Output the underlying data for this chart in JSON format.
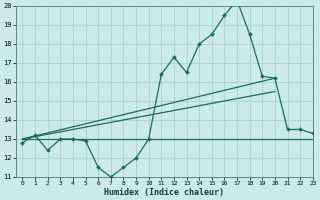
{
  "x": [
    0,
    1,
    2,
    3,
    4,
    5,
    6,
    7,
    8,
    9,
    10,
    11,
    12,
    13,
    14,
    15,
    16,
    17,
    18,
    19,
    20,
    21,
    22,
    23
  ],
  "y_main": [
    12.8,
    13.2,
    12.4,
    13.0,
    13.0,
    12.9,
    11.5,
    11.0,
    11.5,
    12.0,
    13.0,
    16.4,
    17.3,
    16.5,
    18.0,
    18.5,
    19.5,
    20.3,
    18.5,
    16.3,
    16.2,
    13.5,
    13.5,
    13.3
  ],
  "line1_x": [
    0,
    20
  ],
  "line1_y": [
    13.0,
    16.2
  ],
  "line2_x": [
    0,
    20
  ],
  "line2_y": [
    13.0,
    15.5
  ],
  "hline_x": [
    0,
    23
  ],
  "hline_y": [
    13.0,
    13.0
  ],
  "main_color": "#1a6b5a",
  "line_color": "#1a6b5a",
  "bg_color": "#cceaea",
  "grid_color": "#aacece",
  "xlabel": "Humidex (Indice chaleur)",
  "ylim": [
    11,
    20
  ],
  "xlim": [
    -0.5,
    23
  ],
  "yticks": [
    11,
    12,
    13,
    14,
    15,
    16,
    17,
    18,
    19,
    20
  ],
  "xticks": [
    0,
    1,
    2,
    3,
    4,
    5,
    6,
    7,
    8,
    9,
    10,
    11,
    12,
    13,
    14,
    15,
    16,
    17,
    18,
    19,
    20,
    21,
    22,
    23
  ]
}
